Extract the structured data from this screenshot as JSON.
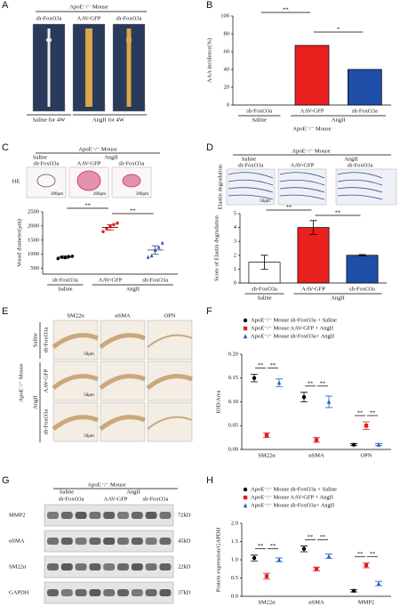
{
  "figure": {
    "panel_labels": [
      "A",
      "B",
      "C",
      "D",
      "E",
      "F",
      "G",
      "H"
    ],
    "a": {
      "header": "ApoE⁻/⁻ Mouse",
      "columns": [
        "sh-FoxO3a",
        "AAV-GFP",
        "sh-FoxO3a"
      ],
      "footers": [
        "Saline for 4W",
        "AngII for 4W"
      ]
    },
    "c": {
      "header": "ApoE⁻/⁻ Mouse",
      "groups": [
        "Saline",
        "AngII"
      ],
      "columns": [
        "sh-FoxO3a",
        "AAV-GFP",
        "sh-FoxO3a"
      ],
      "row_label": "HE",
      "scales": [
        "200μm",
        "200μm",
        "200μm"
      ]
    },
    "d": {
      "header": "ApoE⁻/⁻ Mouse",
      "groups": [
        "Saline",
        "AngII"
      ],
      "columns": [
        "sh-FoxO3a",
        "AAV-GFP",
        "sh-FoxO3a"
      ],
      "row_label": "Elastin degradation",
      "scale": "50μm"
    },
    "e": {
      "columns": [
        "SM22α",
        "αSMA",
        "OPN"
      ],
      "side": "ApoE⁻/⁻ Mouse",
      "groups": [
        "Saline",
        "AngII"
      ],
      "rows": [
        "sh-FoxO3a",
        "AAV-GFP",
        "sh-FoxO3a"
      ],
      "scales": [
        "50μm",
        "50μm",
        "50μm"
      ]
    },
    "g": {
      "header": "ApoE⁻/⁻ Mouse",
      "groups": [
        "Saline",
        "AngII"
      ],
      "columns": [
        "sh-FoxO3a",
        "AAV-GFP",
        "sh-FoxO3a"
      ],
      "rows": [
        "MMP2",
        "αSMA",
        "SM22α",
        "GAPDH"
      ],
      "sizes": [
        "72kD",
        "45kD",
        "22kD",
        "37kD"
      ]
    }
  },
  "chart_data": [
    {
      "type": "bar",
      "ylabel": "AAA incidence(%)",
      "ylim": [
        0,
        100
      ],
      "yticks": [
        0,
        20,
        40,
        60,
        80,
        100
      ],
      "categories": [
        "sh-FoxO3a",
        "AAV-GFP",
        "sh-FoxO3a"
      ],
      "values": [
        0,
        67,
        40
      ],
      "colors": [
        "#ffffff",
        "#e8201e",
        "#1e4ea8"
      ],
      "groups": [
        "Saline",
        "AngII"
      ],
      "footer": "ApoE⁻/⁻ Mouse",
      "significance": [
        "**",
        "*"
      ]
    },
    {
      "type": "dot",
      "ylabel": "Vessel diameter(μm)",
      "ylim": [
        300,
        2500
      ],
      "yticks": [
        500,
        1000,
        1500,
        2000,
        2500
      ],
      "categories": [
        "sh-FoxO3a",
        "AAV-GFP",
        "sh-FoxO3a"
      ],
      "values": [
        900,
        1950,
        1150
      ],
      "errors": [
        40,
        100,
        150
      ],
      "points": [
        [
          850,
          900,
          880,
          920,
          930
        ],
        [
          1800,
          1900,
          2000,
          2050,
          2100
        ],
        [
          900,
          950,
          1150,
          1250,
          1400
        ]
      ],
      "colors": [
        "#000000",
        "#e8201e",
        "#1e4ea8"
      ],
      "groups": [
        "Saline",
        "AngII"
      ],
      "significance": [
        "**",
        "**"
      ]
    },
    {
      "type": "bar",
      "ylabel": "Score of Elastin degradation",
      "ylim": [
        0,
        5
      ],
      "yticks": [
        0,
        1,
        2,
        3,
        4,
        5
      ],
      "categories": [
        "sh-FoxO3a",
        "AAV-GFP",
        "sh-FoxO3a"
      ],
      "values": [
        1.5,
        4,
        2
      ],
      "errors": [
        0.5,
        0.5,
        0.05
      ],
      "colors": [
        "#ffffff",
        "#e8201e",
        "#1e4ea8"
      ],
      "groups": [
        "Saline",
        "AngII"
      ],
      "significance": [
        "**",
        "**"
      ]
    },
    {
      "type": "groupdot",
      "ylabel": "IOD/Area",
      "ylim": [
        0,
        0.2
      ],
      "yticks": [
        {
          "value": 0,
          "label": "0.00"
        },
        {
          "value": 0.05,
          "label": "0.05"
        },
        {
          "value": 0.1,
          "label": "0.10"
        },
        {
          "value": 0.15,
          "label": "0.15"
        },
        {
          "value": 0.2,
          "label": "0.20"
        }
      ],
      "categories": [
        "SM22α",
        "αSMA",
        "OPN"
      ],
      "series": [
        {
          "name": "ApoE⁻/⁻ Mouse sh-FoxO3a + Saline",
          "color": "#000000",
          "marker": "circle",
          "values": [
            0.15,
            0.11,
            0.01
          ],
          "errors": [
            0.008,
            0.01,
            0.002
          ]
        },
        {
          "name": "ApoE⁻/⁻ Mouse AAV-GFP + AngII",
          "color": "#e02020",
          "marker": "square",
          "values": [
            0.03,
            0.02,
            0.05
          ],
          "errors": [
            0.005,
            0.005,
            0.008
          ]
        },
        {
          "name": "ApoE⁻/⁻ Mouse sh-FoxO3a+ AngII",
          "color": "#2060c0",
          "marker": "triangle",
          "values": [
            0.14,
            0.1,
            0.01
          ],
          "errors": [
            0.008,
            0.012,
            0.002
          ]
        }
      ],
      "significance": [
        "**",
        "**",
        "**",
        "**",
        "**",
        "**"
      ]
    },
    {
      "type": "groupdot",
      "ylabel": "Protein expression/GAPDH",
      "ylim": [
        0,
        2
      ],
      "yticks": [
        {
          "value": 0,
          "label": "0.0"
        },
        0.5,
        {
          "value": 1,
          "label": "1.0"
        },
        1.5,
        {
          "value": 2,
          "label": "2.0"
        }
      ],
      "categories": [
        "SM22α",
        "αSMA",
        "MMP2"
      ],
      "series": [
        {
          "name": "ApoE⁻/⁻ Mouse sh-FoxO3a + Saline",
          "color": "#000000",
          "marker": "circle",
          "values": [
            1.05,
            1.3,
            0.15
          ],
          "errors": [
            0.08,
            0.08,
            0.03
          ]
        },
        {
          "name": "ApoE⁻/⁻ Mouse AAV-GFP + AngII",
          "color": "#e02020",
          "marker": "square",
          "values": [
            0.55,
            0.75,
            0.85
          ],
          "errors": [
            0.08,
            0.05,
            0.07
          ]
        },
        {
          "name": "ApoE⁻/⁻ Mouse sh-FoxO3a+ AngII",
          "color": "#2060c0",
          "marker": "triangle",
          "values": [
            1.0,
            1.1,
            0.35
          ],
          "errors": [
            0.05,
            0.06,
            0.06
          ]
        }
      ],
      "significance": [
        "**",
        "**",
        "**",
        "**",
        "**",
        "**"
      ]
    }
  ]
}
